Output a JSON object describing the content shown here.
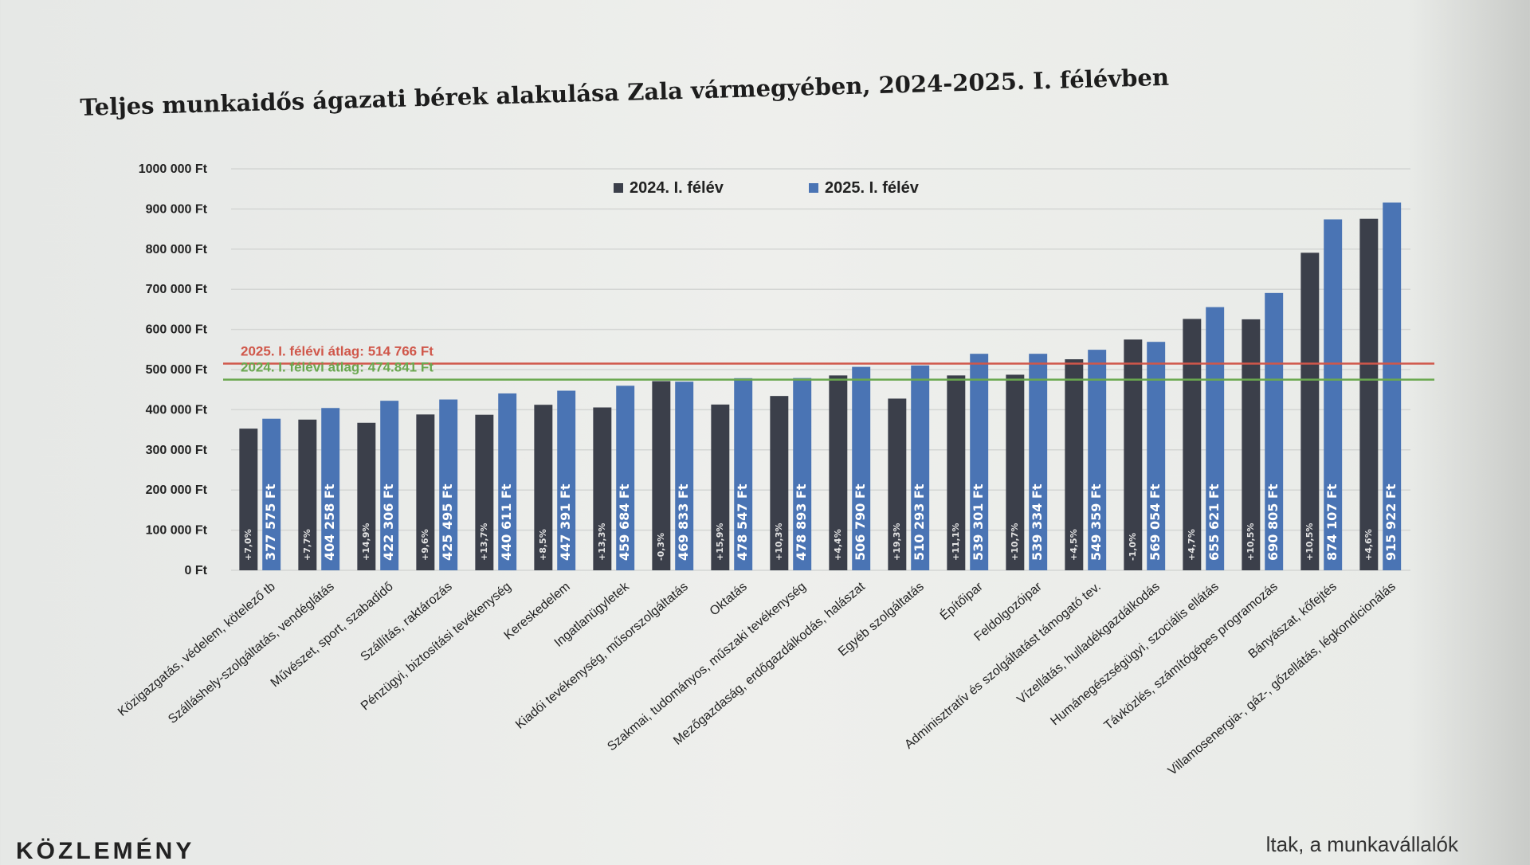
{
  "chart_data": {
    "type": "bar",
    "title": "Teljes munkaidős ágazati bérek alakulása Zala vármegyében, 2024-2025. I. félévben",
    "xlabel": "",
    "ylabel": "",
    "ylim": [
      0,
      1000000
    ],
    "yticks": [
      "0 Ft",
      "100 000 Ft",
      "200 000 Ft",
      "300 000 Ft",
      "400 000 Ft",
      "500 000 Ft",
      "600 000 Ft",
      "700 000 Ft",
      "800 000 Ft",
      "900 000 Ft",
      "1000 000 Ft"
    ],
    "grid": true,
    "legend_position": "top-center",
    "categories": [
      "Közigazgatás, védelem, kötelező tb",
      "Szálláshely-szolgáltatás, vendéglátás",
      "Művészet, sport, szabadidő",
      "Szállítás, raktározás",
      "Pénzügyi, biztosítási tevékenység",
      "Kereskedelem",
      "Ingatlanügyletek",
      "Kiadói tevékenység, műsorszolgáltatás",
      "Oktatás",
      "Szakmai, tudományos, műszaki tevékenység",
      "Mezőgazdaság, erdőgazdálkodás, halászat",
      "Egyéb szolgáltatás",
      "Építőipar",
      "Feldolgozóipar",
      "Adminisztratív és szolgáltatást támogató tev.",
      "Vízellátás, hulladékgazdálkodás",
      "Humánegészségügyi, szociális ellátás",
      "Távközlés, számítógépes programozás",
      "Bányászat, kőfejtés",
      "Villamosenergia-, gáz-, gőzellátás, légkondicionálás"
    ],
    "series": [
      {
        "name": "2024. I. félév",
        "color": "#3b3f4a",
        "values": [
          352900,
          375400,
          367500,
          388200,
          387500,
          412300,
          405700,
          471200,
          412900,
          434200,
          485400,
          427700,
          485400,
          487200,
          525700,
          574800,
          626200,
          625200,
          791000,
          875600
        ],
        "labels": [
          "+7,0%",
          "+7,7%",
          "+14,9%",
          "+9,6%",
          "+13,7%",
          "+8,5%",
          "+13,3%",
          "-0,3%",
          "+15,9%",
          "+10,3%",
          "+4,4%",
          "+19,3%",
          "+11,1%",
          "+10,7%",
          "+4,5%",
          "-1,0%",
          "+4,7%",
          "+10,5%",
          "+10,5%",
          "+4,6%"
        ]
      },
      {
        "name": "2025. I. félév",
        "color": "#4a74b4",
        "values": [
          377575,
          404258,
          422306,
          425495,
          440611,
          447391,
          459684,
          469833,
          478547,
          478893,
          506790,
          510293,
          539301,
          539334,
          549359,
          569054,
          655621,
          690805,
          874107,
          915922
        ],
        "labels": [
          "377 575 Ft",
          "404 258 Ft",
          "422 306 Ft",
          "425 495 Ft",
          "440 611 Ft",
          "447 391 Ft",
          "459 684 Ft",
          "469 833 Ft",
          "478 547 Ft",
          "478 893 Ft",
          "506 790 Ft",
          "510 293 Ft",
          "539 301 Ft",
          "539 334 Ft",
          "549 359 Ft",
          "569 054 Ft",
          "655 621 Ft",
          "690 805 Ft",
          "874 107 Ft",
          "915 922 Ft"
        ]
      }
    ],
    "reference_lines": [
      {
        "label": "2025. I. félévi átlag: 514 766 Ft",
        "value": 514766,
        "color": "#d0574a"
      },
      {
        "label": "2024. I. félévi átlag: 474.841 Ft",
        "value": 474841,
        "color": "#6aa84f"
      }
    ]
  },
  "footer": {
    "fragment": "ltak, a munkavállalók",
    "left_fragment": "KÖZLEMÉNY"
  }
}
